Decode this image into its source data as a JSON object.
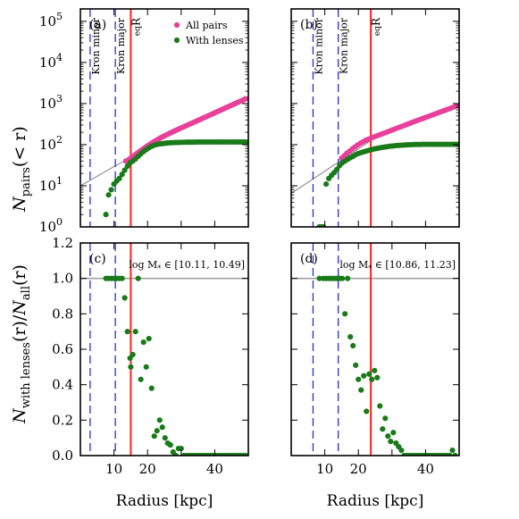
{
  "colors": {
    "all_pairs": "#e8409a",
    "with_lenses": "#1a7a1a",
    "kron": "#2b2bd6",
    "req": "#ff2020",
    "fit": "#8c8c8c",
    "unity": "#a0a0a0"
  },
  "legend": {
    "all_pairs": "All pairs",
    "with_lenses": "With lenses"
  },
  "labels": {
    "ylabel_top": "N_pairs(< r)",
    "ylabel_bottom": "N_with lenses(r)/N_all(r)",
    "xlabel": "Radius [kpc]",
    "kron_minor": "Kron minor",
    "kron_major": "Kron major",
    "req": "R_eq"
  },
  "chart_data": [
    {
      "id": "a",
      "panel_label": "(a)",
      "type": "scatter",
      "yscale": "log",
      "xlim": [
        0,
        50
      ],
      "ylim": [
        1,
        200000
      ],
      "y_ticks": [
        "10^0",
        "10^1",
        "10^2",
        "10^3",
        "10^4",
        "10^5"
      ],
      "kron_minor": 2.9,
      "kron_major": 10.4,
      "req": 15.0,
      "fit_line": {
        "x": [
          0,
          15
        ],
        "y": [
          10,
          50
        ]
      },
      "series": [
        {
          "name": "All pairs",
          "x": [
            13.5,
            14.5,
            15.0,
            15.6,
            16.2,
            16.8,
            17.4,
            18.0,
            18.6,
            19.2,
            19.8,
            20.4,
            21.0,
            21.6,
            22.2,
            22.8,
            23.4,
            24.0,
            24.6,
            25.2,
            25.8,
            26.4,
            27.0,
            27.6,
            28.2,
            28.8,
            29.4,
            30.0,
            30.6,
            31.2,
            31.8,
            32.4,
            33.0,
            33.6,
            34.2,
            34.8,
            35.4,
            36.0,
            36.6,
            37.2,
            37.8,
            38.4,
            39.0,
            39.6,
            40.2,
            40.8,
            41.4,
            42.0,
            42.6,
            43.2,
            43.8,
            44.4,
            45.0,
            45.6,
            46.2,
            46.8,
            47.4,
            48.0,
            48.6,
            49.2
          ],
          "y": [
            40,
            44,
            47,
            51,
            56,
            61,
            66,
            72,
            78,
            84,
            91,
            98,
            106,
            114,
            122,
            130,
            139,
            148,
            157,
            166,
            176,
            186,
            196,
            207,
            218,
            230,
            242,
            255,
            268,
            282,
            297,
            312,
            328,
            345,
            363,
            382,
            402,
            423,
            445,
            468,
            492,
            518,
            545,
            574,
            604,
            636,
            670,
            705,
            742,
            781,
            822,
            865,
            910,
            958,
            1008,
            1061,
            1117,
            1176,
            1238,
            1303
          ]
        },
        {
          "name": "With lenses",
          "x": [
            7.6,
            8.4,
            9.2,
            10.0,
            10.8,
            11.6,
            12.4,
            13.2,
            14.0,
            14.8,
            15.6,
            16.4,
            17.2,
            18.0,
            18.8,
            19.6,
            20.4,
            21.2,
            22.0,
            22.8,
            23.6,
            24.4,
            25.2,
            26.0,
            26.8,
            27.6,
            28.4,
            29.2,
            30.0,
            30.8,
            31.6,
            32.4,
            33.2,
            34.0,
            34.8,
            35.6,
            36.4,
            37.2,
            38.0,
            38.8,
            39.6,
            40.4,
            41.2,
            42.0,
            42.8,
            43.6,
            44.4,
            45.2,
            46.0,
            46.8,
            47.6,
            48.4,
            49.2
          ],
          "y": [
            2,
            6,
            8,
            11,
            13,
            15,
            19,
            24,
            30,
            36,
            40,
            45,
            52,
            60,
            68,
            76,
            84,
            91,
            97,
            101,
            104,
            106,
            108,
            110,
            111,
            112,
            113,
            113,
            114,
            114,
            115,
            115,
            115,
            115,
            116,
            116,
            116,
            116,
            116,
            116,
            116,
            116,
            116,
            116,
            116,
            116,
            116,
            116,
            116,
            116,
            116,
            116,
            116
          ]
        }
      ]
    },
    {
      "id": "b",
      "panel_label": "(b)",
      "type": "scatter",
      "yscale": "log",
      "xlim": [
        0,
        50
      ],
      "ylim": [
        1,
        200000
      ],
      "y_ticks": [
        "10^0",
        "10^1",
        "10^2",
        "10^3",
        "10^4",
        "10^5"
      ],
      "kron_minor": 6.5,
      "kron_major": 14.0,
      "req": 23.7,
      "fit_line": {
        "x": [
          0,
          24
        ],
        "y": [
          6.5,
          130
        ]
      },
      "series": [
        {
          "name": "All pairs",
          "x": [
            15.0,
            15.8,
            16.6,
            17.4,
            18.2,
            19.0,
            19.8,
            20.6,
            21.4,
            22.2,
            23.0,
            23.8,
            24.6,
            25.4,
            26.2,
            27.0,
            27.8,
            28.6,
            29.4,
            30.2,
            31.0,
            31.8,
            32.6,
            33.4,
            34.2,
            35.0,
            35.8,
            36.6,
            37.4,
            38.2,
            39.0,
            39.8,
            40.6,
            41.4,
            42.2,
            43.0,
            43.8,
            44.6,
            45.4,
            46.2,
            47.0,
            47.8,
            48.6,
            49.4
          ],
          "y": [
            47,
            54,
            62,
            70,
            79,
            88,
            98,
            108,
            118,
            128,
            136,
            145,
            154,
            163,
            172,
            182,
            193,
            204,
            216,
            229,
            243,
            257,
            272,
            288,
            305,
            323,
            342,
            362,
            383,
            405,
            428,
            452,
            478,
            505,
            534,
            565,
            597,
            631,
            667,
            705,
            745,
            788,
            833,
            880
          ]
        },
        {
          "name": "With lenses",
          "x": [
            8.4,
            9.0,
            9.6,
            10.4,
            11.2,
            12.0,
            12.8,
            13.6,
            14.4,
            15.2,
            16.0,
            16.8,
            17.6,
            18.4,
            19.2,
            20.0,
            20.8,
            21.6,
            22.4,
            23.2,
            24.0,
            24.8,
            25.6,
            26.4,
            27.2,
            28.0,
            28.8,
            29.6,
            30.4,
            31.2,
            32.0,
            32.8,
            33.6,
            34.4,
            35.2,
            36.0,
            36.8,
            37.6,
            38.4,
            39.2,
            40.0,
            40.8,
            41.6,
            42.4,
            43.2,
            44.0,
            44.8,
            45.6,
            46.4,
            47.2,
            48.0,
            48.8,
            49.6
          ],
          "y": [
            1,
            1,
            1,
            11,
            15,
            18,
            21,
            25,
            31,
            36,
            40,
            44,
            48,
            52,
            57,
            61,
            64,
            67,
            70,
            73,
            76,
            79,
            81,
            84,
            86,
            88,
            90,
            92,
            93,
            95,
            96,
            97,
            98,
            99,
            100,
            100,
            101,
            101,
            101,
            102,
            102,
            102,
            102,
            102,
            102,
            102,
            102,
            102,
            102,
            102,
            102,
            102,
            102
          ]
        }
      ]
    },
    {
      "id": "c",
      "panel_label": "(c)",
      "type": "scatter",
      "annotation": "log M_* ∈ [10.11, 10.49]",
      "xlim": [
        0,
        50
      ],
      "ylim": [
        0,
        1.2
      ],
      "x_ticks": [
        10,
        20,
        40
      ],
      "y_ticks": [
        0.0,
        0.2,
        0.4,
        0.6,
        0.8,
        1.0,
        1.2
      ],
      "kron_minor": 2.9,
      "kron_major": 10.4,
      "req": 15.0,
      "unity_line": 1.0,
      "series": [
        {
          "name": "With lenses",
          "x": [
            7.6,
            8.4,
            9.2,
            10.0,
            10.8,
            11.6,
            12.4,
            13.2,
            14.0,
            14.8,
            15.0,
            15.6,
            16.4,
            17.2,
            18.0,
            18.8,
            19.6,
            20.4,
            21.2,
            22.0,
            22.8,
            23.6,
            24.4,
            25.2,
            26.0,
            26.8,
            27.6,
            28.4,
            29.2,
            30.0,
            30.8,
            31.6,
            32.4,
            33.2,
            34.0,
            34.8,
            35.6,
            36.4,
            37.2,
            38.0,
            38.8,
            39.6,
            40.4,
            41.2,
            42.0,
            42.8,
            43.6,
            44.4,
            45.2,
            46.0,
            46.8,
            47.6,
            48.4,
            49.2
          ],
          "y": [
            1.0,
            1.0,
            1.0,
            1.0,
            1.0,
            1.0,
            1.0,
            0.89,
            0.7,
            0.55,
            0.5,
            0.57,
            0.7,
            1.0,
            0.43,
            0.64,
            0.5,
            0.66,
            0.38,
            0.11,
            0.14,
            0.2,
            0.16,
            0.1,
            0.07,
            0.06,
            0.02,
            0.0,
            0.04,
            0.04,
            0.0,
            0.0,
            0.0,
            0.0,
            0.0,
            0.0,
            0.0,
            0.0,
            0.0,
            0.0,
            0.0,
            0.0,
            0.0,
            0.0,
            0.0,
            0.0,
            0.0,
            0.0,
            0.0,
            0.0,
            0.0,
            0.0,
            0.0,
            0.0
          ]
        }
      ]
    },
    {
      "id": "d",
      "panel_label": "(d)",
      "type": "scatter",
      "annotation": "log M_* ∈ [10.86, 11.23]",
      "xlim": [
        0,
        50
      ],
      "ylim": [
        0,
        1.2
      ],
      "x_ticks": [
        10,
        20,
        40
      ],
      "y_ticks": [
        0.0,
        0.2,
        0.4,
        0.6,
        0.8,
        1.0,
        1.2
      ],
      "kron_minor": 6.5,
      "kron_major": 14.0,
      "req": 23.7,
      "unity_line": 1.0,
      "series": [
        {
          "name": "With lenses",
          "x": [
            8.4,
            9.6,
            10.4,
            11.2,
            12.0,
            12.8,
            13.6,
            14.4,
            15.2,
            16.0,
            16.8,
            17.6,
            18.4,
            19.2,
            20.0,
            20.8,
            21.6,
            22.4,
            23.2,
            24.0,
            24.8,
            25.6,
            26.4,
            27.2,
            28.0,
            28.8,
            29.6,
            30.4,
            31.2,
            32.0,
            32.8,
            33.6,
            34.4,
            35.2,
            36.0,
            36.8,
            37.6,
            38.4,
            39.2,
            40.0,
            40.8,
            41.6,
            42.4,
            43.2,
            44.0,
            44.8,
            45.6,
            46.4,
            47.2,
            48.0,
            48.8
          ],
          "y": [
            1.0,
            1.0,
            1.0,
            1.0,
            1.0,
            1.0,
            1.0,
            1.0,
            1.0,
            0.8,
            1.0,
            0.67,
            0.62,
            0.51,
            0.43,
            0.37,
            0.45,
            0.25,
            0.46,
            0.43,
            0.48,
            0.44,
            0.28,
            0.15,
            0.21,
            0.11,
            0.08,
            0.13,
            0.07,
            0.05,
            0.03,
            0.0,
            0.0,
            0.0,
            0.0,
            0.0,
            0.0,
            0.0,
            0.0,
            0.0,
            0.0,
            0.0,
            0.0,
            0.0,
            0.0,
            0.0,
            0.0,
            0.0,
            0.0,
            0.03,
            0.0
          ]
        }
      ]
    }
  ]
}
